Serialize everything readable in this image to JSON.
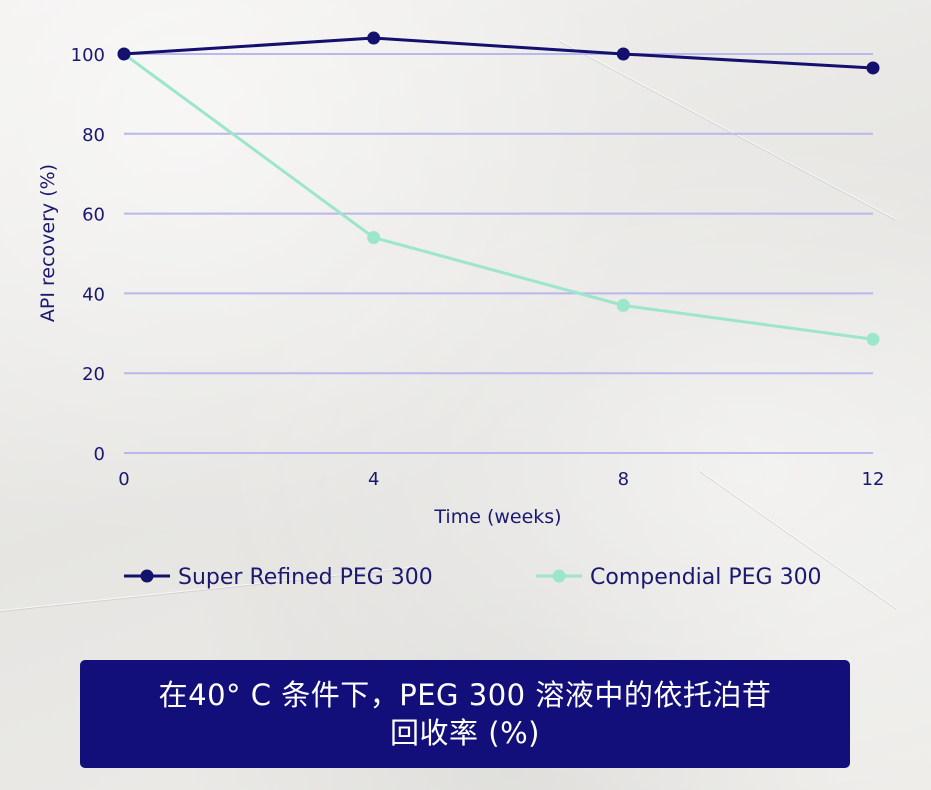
{
  "chart_data": {
    "type": "line",
    "x": [
      0,
      4,
      8,
      12
    ],
    "xlabel": "Time (weeks)",
    "ylabel": "API recovery (%)",
    "ylim": [
      0,
      100
    ],
    "xlim": [
      0,
      12
    ],
    "yticks": [
      0,
      20,
      40,
      60,
      80,
      100
    ],
    "xticks": [
      0,
      4,
      8,
      12
    ],
    "grid": "horizontal",
    "legend_position": "bottom",
    "series": [
      {
        "name": "Super Refined PEG 300",
        "values": [
          100,
          104,
          100,
          96.5
        ],
        "color": "#14106e"
      },
      {
        "name": "Compendial PEG 300",
        "values": [
          100,
          54,
          37,
          28.5
        ],
        "color": "#9ce6cc"
      }
    ]
  },
  "caption": {
    "line1": "在40° C 条件下，PEG 300 溶液中的依托泊苷",
    "line2": "回收率 (%)"
  },
  "colors": {
    "grid": "#b9b7ec",
    "axis_text": "#1b1870",
    "caption_bg": "#130f7a"
  }
}
